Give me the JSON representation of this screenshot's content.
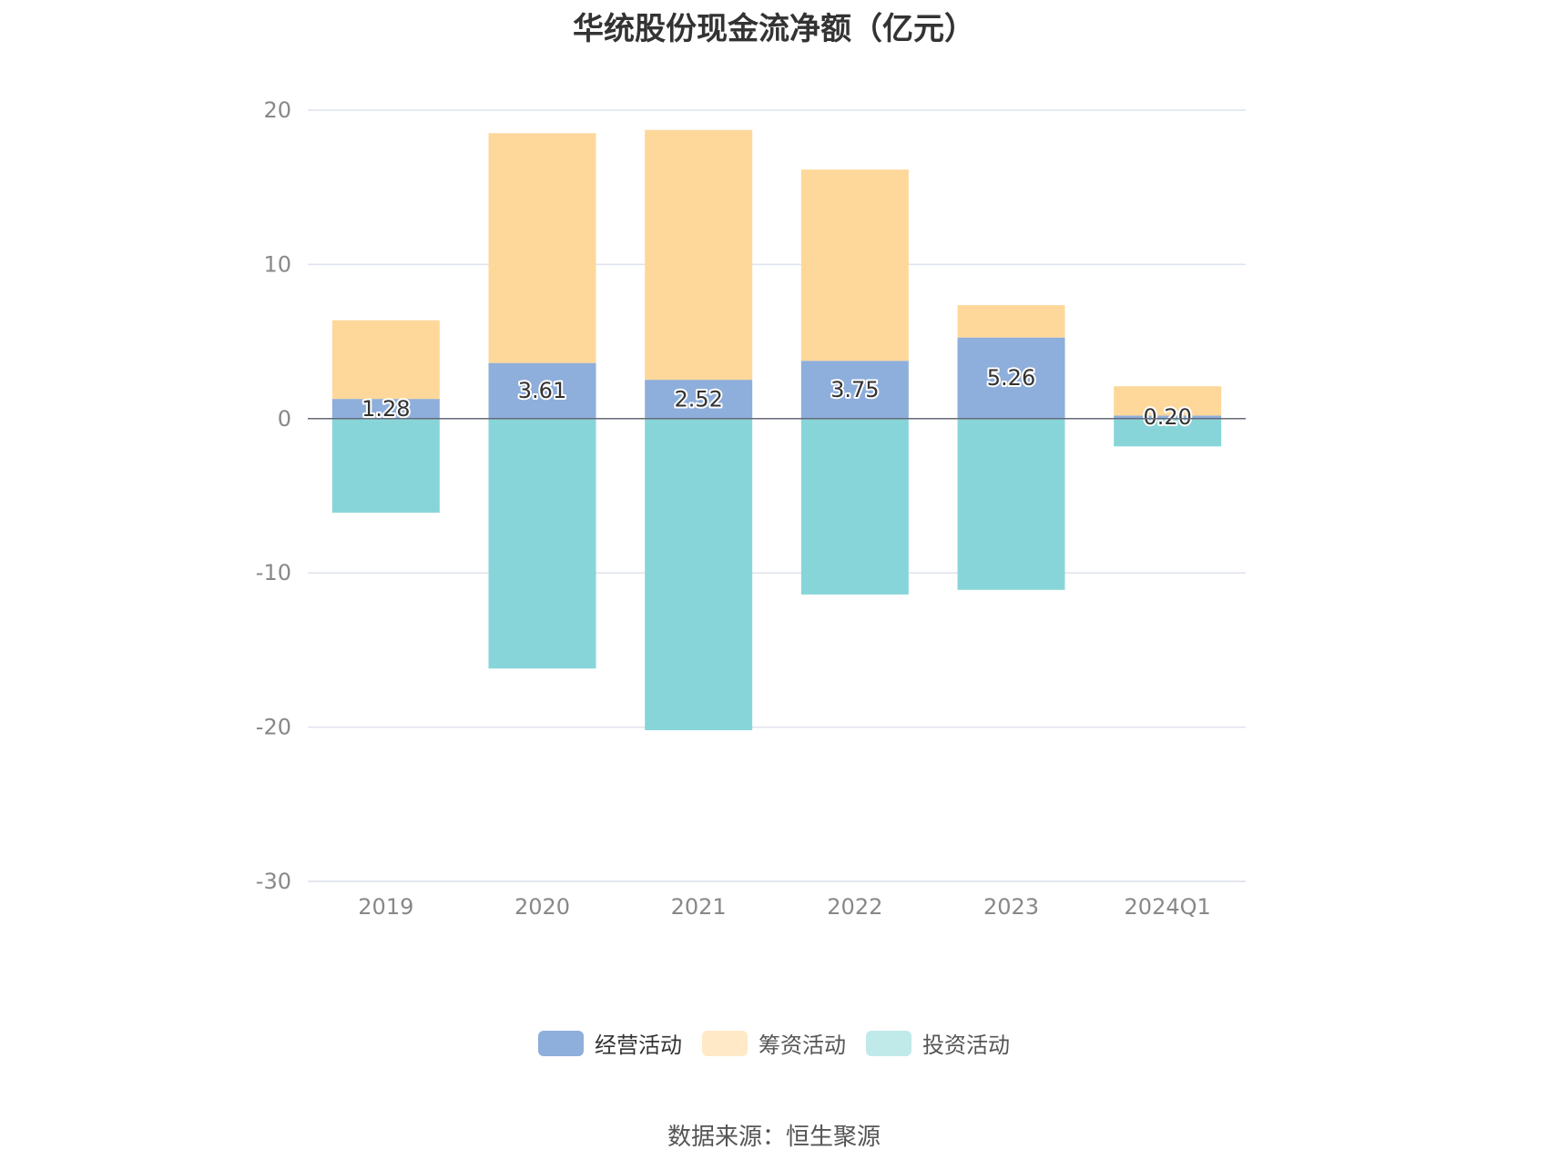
{
  "chart_data": {
    "type": "bar",
    "stacked": true,
    "title": "华统股份现金流净额（亿元）",
    "categories": [
      "2019",
      "2020",
      "2021",
      "2022",
      "2023",
      "2024Q1"
    ],
    "series": [
      {
        "name": "经营活动",
        "color": "#8eaedb",
        "values": [
          1.28,
          3.61,
          2.52,
          3.75,
          5.26,
          0.2
        ],
        "show_labels": true
      },
      {
        "name": "筹资活动",
        "color": "#fed89a",
        "values": [
          5.1,
          14.9,
          16.2,
          12.4,
          2.1,
          1.9
        ],
        "show_labels": false
      },
      {
        "name": "投资活动",
        "color": "#88d5d9",
        "values": [
          -6.1,
          -16.2,
          -20.2,
          -11.4,
          -11.1,
          -1.8
        ],
        "show_labels": false
      }
    ],
    "legend_colors": [
      "#8eaedb",
      "#ffe9c6",
      "#c0e9ea"
    ],
    "ylim": [
      -30,
      20
    ],
    "yticks": [
      20,
      10,
      0,
      -10,
      -20,
      -30
    ],
    "grid": true,
    "legend_position": "bottom"
  },
  "source": "数据来源：恒生聚源"
}
